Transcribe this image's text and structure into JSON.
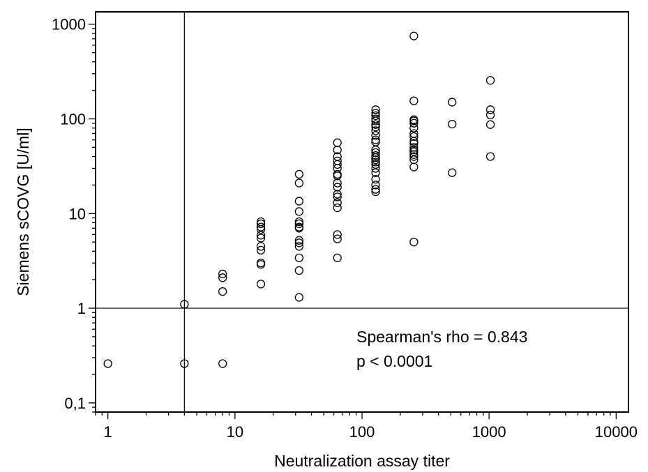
{
  "chart_data": {
    "type": "scatter",
    "xlabel": "Neutralization assay titer",
    "ylabel": "Siemens sCOVG [U/ml]",
    "xscale": "log",
    "yscale": "log",
    "xlim": [
      0.8,
      12500
    ],
    "ylim": [
      0.08,
      1350
    ],
    "x_ticks": [
      1,
      10,
      100,
      1000,
      10000
    ],
    "x_tick_labels": [
      "1",
      "10",
      "100",
      "1000",
      "10000"
    ],
    "y_ticks": [
      0.1,
      1,
      10,
      100,
      1000
    ],
    "y_tick_labels": [
      "0,1",
      "1",
      "10",
      "100",
      "1000"
    ],
    "grid": false,
    "legend": "none",
    "reference_lines": [
      {
        "orientation": "vertical",
        "x": 4
      },
      {
        "orientation": "horizontal",
        "y": 1
      }
    ],
    "annotations": [
      "Spearman's rho = 0.843",
      "p < 0.0001"
    ],
    "series": [
      {
        "marker": "open-circle",
        "points": [
          [
            1,
            0.26
          ],
          [
            4,
            1.1
          ],
          [
            4,
            0.26
          ],
          [
            8,
            2.3
          ],
          [
            8,
            2.1
          ],
          [
            8,
            1.5
          ],
          [
            8,
            0.26
          ],
          [
            16,
            8.2
          ],
          [
            16,
            7.8
          ],
          [
            16,
            7.2
          ],
          [
            16,
            6.8
          ],
          [
            16,
            5.9
          ],
          [
            16,
            5.5
          ],
          [
            16,
            4.5
          ],
          [
            16,
            4.1
          ],
          [
            16,
            3.0
          ],
          [
            16,
            2.9
          ],
          [
            16,
            1.8
          ],
          [
            32,
            26
          ],
          [
            32,
            21
          ],
          [
            32,
            13.5
          ],
          [
            32,
            10.5
          ],
          [
            32,
            8.2
          ],
          [
            32,
            7.8
          ],
          [
            32,
            7.2
          ],
          [
            32,
            7.0
          ],
          [
            32,
            5.2
          ],
          [
            32,
            4.9
          ],
          [
            32,
            4.5
          ],
          [
            32,
            3.4
          ],
          [
            32,
            2.5
          ],
          [
            32,
            1.3
          ],
          [
            64,
            56
          ],
          [
            64,
            47
          ],
          [
            64,
            40
          ],
          [
            64,
            36
          ],
          [
            64,
            33
          ],
          [
            64,
            30
          ],
          [
            64,
            26
          ],
          [
            64,
            25
          ],
          [
            64,
            21
          ],
          [
            64,
            19
          ],
          [
            64,
            16
          ],
          [
            64,
            15
          ],
          [
            64,
            13
          ],
          [
            64,
            11.5
          ],
          [
            64,
            6.0
          ],
          [
            64,
            5.4
          ],
          [
            64,
            3.4
          ],
          [
            128,
            125
          ],
          [
            128,
            115
          ],
          [
            128,
            108
          ],
          [
            128,
            100
          ],
          [
            128,
            95
          ],
          [
            128,
            87
          ],
          [
            128,
            82
          ],
          [
            128,
            75
          ],
          [
            128,
            67
          ],
          [
            128,
            60
          ],
          [
            128,
            57
          ],
          [
            128,
            47
          ],
          [
            128,
            44
          ],
          [
            128,
            41
          ],
          [
            128,
            39
          ],
          [
            128,
            37
          ],
          [
            128,
            35
          ],
          [
            128,
            33
          ],
          [
            128,
            30
          ],
          [
            128,
            27
          ],
          [
            128,
            23
          ],
          [
            128,
            20
          ],
          [
            128,
            18
          ],
          [
            128,
            17
          ],
          [
            256,
            750
          ],
          [
            256,
            155
          ],
          [
            256,
            98
          ],
          [
            256,
            95
          ],
          [
            256,
            90
          ],
          [
            256,
            80
          ],
          [
            256,
            70
          ],
          [
            256,
            65
          ],
          [
            256,
            58
          ],
          [
            256,
            55
          ],
          [
            256,
            50
          ],
          [
            256,
            47
          ],
          [
            256,
            45
          ],
          [
            256,
            42
          ],
          [
            256,
            40
          ],
          [
            256,
            37
          ],
          [
            256,
            31
          ],
          [
            256,
            5.0
          ],
          [
            512,
            150
          ],
          [
            512,
            88
          ],
          [
            512,
            27
          ],
          [
            1024,
            255
          ],
          [
            1024,
            125
          ],
          [
            1024,
            110
          ],
          [
            1024,
            87
          ],
          [
            1024,
            40
          ]
        ]
      }
    ]
  }
}
